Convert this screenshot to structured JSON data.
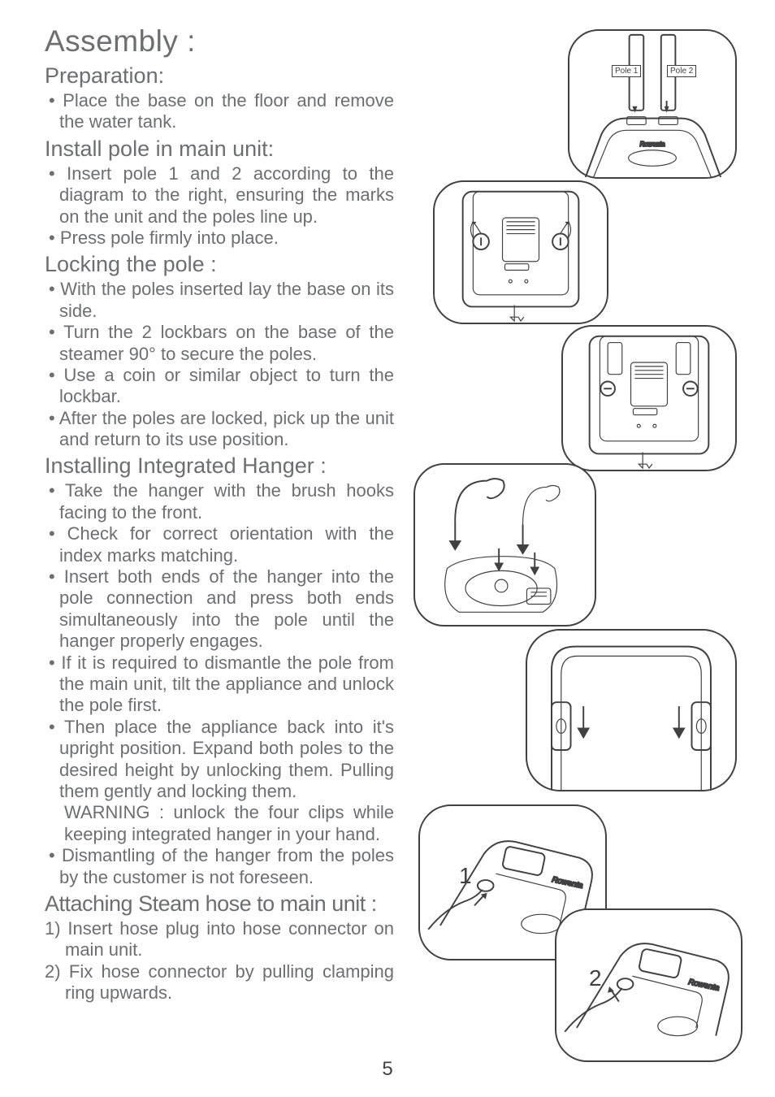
{
  "pageNumber": "5",
  "mainTitle": "Assembly :",
  "diagrams": {
    "pole1Label": "Pole 1",
    "pole2Label": "Pole 2",
    "step1": "1",
    "step2": "2",
    "brand": "Rowenta"
  },
  "sections": [
    {
      "title": "Preparation:",
      "items": [
        {
          "type": "bullet",
          "text": "Place the base on the floor and remove the water tank."
        }
      ]
    },
    {
      "title": "Install pole in main unit:",
      "items": [
        {
          "type": "bullet",
          "text": "Insert pole 1 and 2 according to the diagram to the right, ensuring the marks on the unit and the poles line up."
        },
        {
          "type": "bullet",
          "text": "Press pole firmly into place."
        }
      ]
    },
    {
      "title": "Locking the pole :",
      "items": [
        {
          "type": "bullet",
          "text": "With the poles inserted lay the base on its side."
        },
        {
          "type": "bullet",
          "text": "Turn the 2 lockbars  on the base of the steamer 90° to secure the poles."
        },
        {
          "type": "bullet",
          "text": "Use a coin or similar object to turn the lockbar."
        },
        {
          "type": "bullet",
          "text": "After the poles are locked, pick up the unit and return to its use position."
        }
      ]
    },
    {
      "title": "Installing Integrated Hanger :",
      "items": [
        {
          "type": "bullet",
          "text": "Take the hanger with the brush hooks facing to the front."
        },
        {
          "type": "bullet",
          "text": "Check for correct orientation with the index marks matching."
        },
        {
          "type": "bullet",
          "text": "Insert both ends of the hanger into the pole connection and press both ends simultaneously into the pole until the hanger properly engages."
        },
        {
          "type": "bullet",
          "text": "If it is required to dismantle the pole from the main unit, tilt the appliance and unlock the pole first."
        },
        {
          "type": "bullet",
          "text": "Then place the appliance back into it's upright position. Expand both poles to the desired height by unlocking them. Pulling them gently and locking them."
        },
        {
          "type": "warning",
          "text": "WARNING : unlock the four clips while keeping integrated hanger in your hand."
        },
        {
          "type": "bullet",
          "text": "Dismantling of the hanger from the poles by the customer is not foreseen."
        }
      ]
    },
    {
      "title": "Attaching Steam hose to main unit :",
      "condensed": true,
      "items": [
        {
          "type": "numbered",
          "prefix": "1) ",
          "text": "Insert hose plug into hose connector on main unit."
        },
        {
          "type": "numbered",
          "prefix": "2) ",
          "text": "Fix hose connector by pulling clamping ring upwards."
        }
      ]
    }
  ]
}
